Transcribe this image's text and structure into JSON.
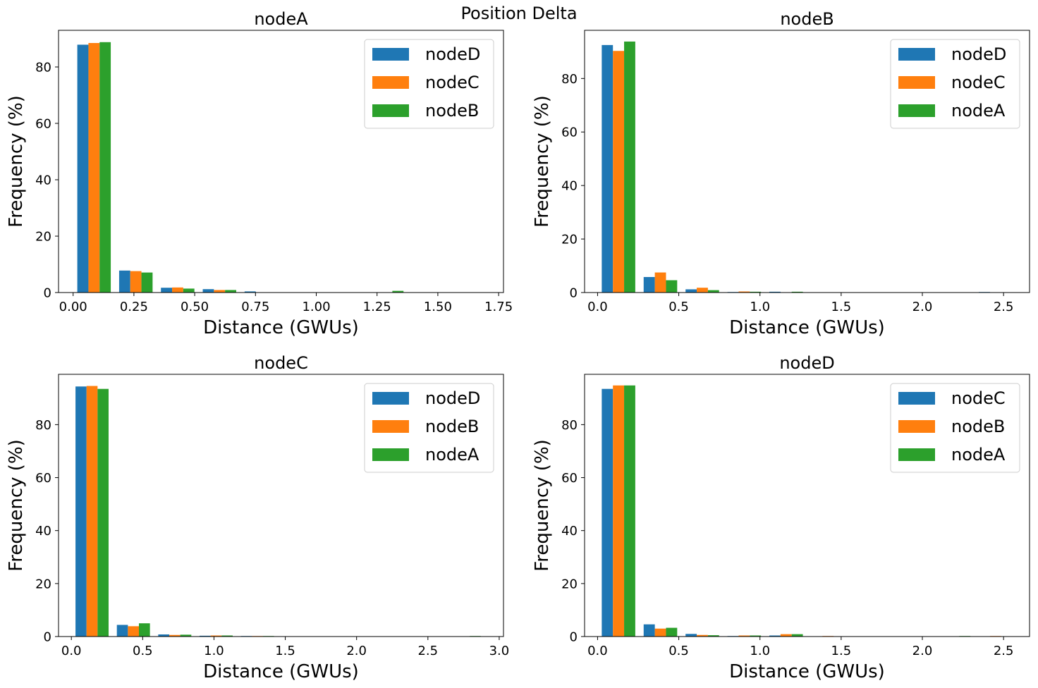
{
  "figure": {
    "title": "Position Delta"
  },
  "colors": {
    "blue": "#1f77b4",
    "orange": "#ff7f0e",
    "green": "#2ca02c"
  },
  "chart_data": [
    {
      "type": "bar",
      "title": "nodeA",
      "xlabel": "Distance (GWUs)",
      "ylabel": "Frequency (%)",
      "xlim": [
        -0.06,
        1.77
      ],
      "ylim": [
        0,
        93
      ],
      "xticks": [
        "0.00",
        "0.25",
        "0.50",
        "0.75",
        "1.00",
        "1.25",
        "1.50",
        "1.75"
      ],
      "yticks": [
        "0",
        "20",
        "40",
        "60",
        "80"
      ],
      "bin_width": 0.172,
      "bin_starts": [
        0.0,
        0.172,
        0.344,
        0.516,
        0.688,
        0.86,
        1.032,
        1.204,
        1.376,
        1.548
      ],
      "legend_position": "upper-right",
      "series": [
        {
          "name": "nodeD",
          "color": "#1f77b4",
          "values": [
            87.9,
            7.8,
            1.7,
            1.2,
            0.4,
            0.1,
            0.1,
            0.1,
            0.1,
            0
          ]
        },
        {
          "name": "nodeC",
          "color": "#ff7f0e",
          "values": [
            88.5,
            7.6,
            1.8,
            0.9,
            0.1,
            0.1,
            0.1,
            0.1,
            0,
            0.1
          ]
        },
        {
          "name": "nodeB",
          "color": "#2ca02c",
          "values": [
            88.8,
            7.1,
            1.4,
            0.9,
            0.1,
            0.1,
            0.1,
            0.6,
            0,
            0
          ]
        }
      ]
    },
    {
      "type": "bar",
      "title": "nodeB",
      "xlabel": "Distance (GWUs)",
      "ylabel": "Frequency (%)",
      "xlim": [
        -0.08,
        2.66
      ],
      "ylim": [
        0,
        98
      ],
      "xticks": [
        "0.0",
        "0.5",
        "1.0",
        "1.5",
        "2.0",
        "2.5"
      ],
      "yticks": [
        "0",
        "20",
        "40",
        "60",
        "80"
      ],
      "bin_width": 0.258,
      "bin_starts": [
        0.0,
        0.258,
        0.516,
        0.774,
        1.032,
        1.29,
        1.548,
        1.806,
        2.064,
        2.322
      ],
      "legend_position": "upper-right",
      "series": [
        {
          "name": "nodeD",
          "color": "#1f77b4",
          "values": [
            92.5,
            5.8,
            1.2,
            0.2,
            0.3,
            0.1,
            0,
            0,
            0,
            0.2
          ]
        },
        {
          "name": "nodeC",
          "color": "#ff7f0e",
          "values": [
            90.3,
            7.5,
            1.8,
            0.4,
            0.1,
            0.1,
            0,
            0,
            0,
            0
          ]
        },
        {
          "name": "nodeA",
          "color": "#2ca02c",
          "values": [
            93.8,
            4.6,
            0.9,
            0.3,
            0.3,
            0.1,
            0,
            0,
            0,
            0
          ]
        }
      ]
    },
    {
      "type": "bar",
      "title": "nodeC",
      "xlabel": "Distance (GWUs)",
      "ylabel": "Frequency (%)",
      "xlim": [
        -0.09,
        3.03
      ],
      "ylim": [
        0,
        99
      ],
      "xticks": [
        "0.0",
        "0.5",
        "1.0",
        "1.5",
        "2.0",
        "2.5",
        "3.0"
      ],
      "yticks": [
        "0",
        "20",
        "40",
        "60",
        "80"
      ],
      "bin_width": 0.29,
      "bin_starts": [
        0.0,
        0.29,
        0.58,
        0.87,
        1.16,
        1.45,
        1.74,
        2.03,
        2.32,
        2.61
      ],
      "legend_position": "upper-right",
      "series": [
        {
          "name": "nodeD",
          "color": "#1f77b4",
          "values": [
            94.4,
            4.4,
            0.8,
            0.3,
            0.2,
            0,
            0,
            0,
            0,
            0
          ]
        },
        {
          "name": "nodeB",
          "color": "#ff7f0e",
          "values": [
            94.6,
            3.9,
            0.6,
            0.4,
            0.2,
            0.1,
            0.1,
            0,
            0,
            0
          ]
        },
        {
          "name": "nodeA",
          "color": "#2ca02c",
          "values": [
            93.5,
            5.0,
            0.7,
            0.4,
            0.2,
            0,
            0,
            0,
            0,
            0.2
          ]
        }
      ]
    },
    {
      "type": "bar",
      "title": "nodeD",
      "xlabel": "Distance (GWUs)",
      "ylabel": "Frequency (%)",
      "xlim": [
        -0.08,
        2.66
      ],
      "ylim": [
        0,
        99
      ],
      "xticks": [
        "0.0",
        "0.5",
        "1.0",
        "1.5",
        "2.0",
        "2.5"
      ],
      "yticks": [
        "0",
        "20",
        "40",
        "60",
        "80"
      ],
      "bin_width": 0.258,
      "bin_starts": [
        0.0,
        0.258,
        0.516,
        0.774,
        1.032,
        1.29,
        1.548,
        1.806,
        2.064,
        2.322
      ],
      "legend_position": "upper-right",
      "series": [
        {
          "name": "nodeC",
          "color": "#1f77b4",
          "values": [
            93.5,
            4.6,
            1.0,
            0.2,
            0.4,
            0,
            0,
            0,
            0,
            0
          ]
        },
        {
          "name": "nodeB",
          "color": "#ff7f0e",
          "values": [
            94.8,
            3.0,
            0.6,
            0.4,
            0.9,
            0.2,
            0,
            0,
            0,
            0.2
          ]
        },
        {
          "name": "nodeA",
          "color": "#2ca02c",
          "values": [
            94.8,
            3.3,
            0.5,
            0.4,
            0.9,
            0,
            0,
            0,
            0.2,
            0
          ]
        }
      ]
    }
  ]
}
